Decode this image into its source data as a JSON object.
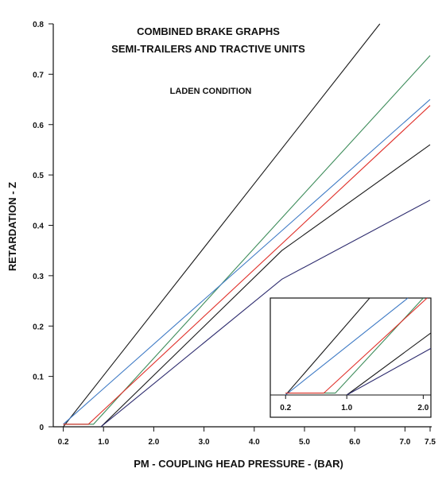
{
  "chart_data": [
    {
      "type": "line",
      "title": "COMBINED BRAKE GRAPHS",
      "subtitle": "SEMI-TRAILERS AND TRACTIVE UNITS",
      "annotation": "LADEN CONDITION",
      "xlabel": "PM - COUPLING HEAD PRESSURE - (BAR)",
      "ylabel": "RETARDATION - Z",
      "xlim": [
        0,
        7.5
      ],
      "ylim": [
        0,
        0.8
      ],
      "x_ticks": [
        {
          "value": 0.2,
          "label": "0.2"
        },
        {
          "value": 1.0,
          "label": "1.0"
        },
        {
          "value": 2.0,
          "label": "2.0"
        },
        {
          "value": 3.0,
          "label": "3.0"
        },
        {
          "value": 4.0,
          "label": "4.0"
        },
        {
          "value": 5.0,
          "label": "5.0"
        },
        {
          "value": 6.0,
          "label": "6.0"
        },
        {
          "value": 7.0,
          "label": "7.0"
        },
        {
          "value": 7.5,
          "label": "7.5"
        }
      ],
      "y_ticks": [
        {
          "value": 0,
          "label": "0"
        },
        {
          "value": 0.1,
          "label": "0.1"
        },
        {
          "value": 0.2,
          "label": "0.2"
        },
        {
          "value": 0.3,
          "label": "0.3"
        },
        {
          "value": 0.4,
          "label": "0.4"
        },
        {
          "value": 0.5,
          "label": "0.5"
        },
        {
          "value": 0.6,
          "label": "0.6"
        },
        {
          "value": 0.7,
          "label": "0.7"
        },
        {
          "value": 0.8,
          "label": "0.8"
        }
      ],
      "grid": false,
      "series": [
        {
          "color": "#1a1a1a",
          "x": [
            0.2,
            6.5
          ],
          "y": [
            0,
            0.8
          ]
        },
        {
          "color": "#3d8c5a",
          "x": [
            0.2,
            0.8,
            7.5
          ],
          "y": [
            0.005,
            0.005,
            0.737
          ]
        },
        {
          "color": "#3b78c4",
          "x": [
            0.2,
            7.5
          ],
          "y": [
            0.005,
            0.65
          ]
        },
        {
          "color": "#e0302a",
          "x": [
            0.2,
            0.7,
            7.5
          ],
          "y": [
            0.005,
            0.005,
            0.638
          ]
        },
        {
          "color": "#1a1a1a",
          "x": [
            0.95,
            4.55,
            7.5
          ],
          "y": [
            0,
            0.35,
            0.56
          ]
        },
        {
          "color": "#2d2b6e",
          "x": [
            0.95,
            4.55,
            7.5
          ],
          "y": [
            0,
            0.293,
            0.45
          ]
        }
      ]
    },
    {
      "type": "line",
      "inset": true,
      "xlim": [
        0,
        2.1
      ],
      "ylim": [
        0,
        0.25
      ],
      "x_ticks": [
        {
          "value": 0.2,
          "label": "0.2"
        },
        {
          "value": 1.0,
          "label": "1.0"
        },
        {
          "value": 2.0,
          "label": "2.0"
        }
      ],
      "series": [
        {
          "color": "#1a1a1a",
          "x": [
            0.2,
            1.3
          ],
          "y": [
            0,
            0.25
          ]
        },
        {
          "color": "#3b78c4",
          "x": [
            0.2,
            1.8
          ],
          "y": [
            0,
            0.25
          ]
        },
        {
          "color": "#3d8c5a",
          "x": [
            0.2,
            0.85,
            2.0
          ],
          "y": [
            0.005,
            0.005,
            0.25
          ]
        },
        {
          "color": "#e0302a",
          "x": [
            0.2,
            0.7,
            2.05
          ],
          "y": [
            0.005,
            0.005,
            0.25
          ]
        },
        {
          "color": "#1a1a1a",
          "x": [
            1.0,
            2.1
          ],
          "y": [
            0,
            0.16
          ]
        },
        {
          "color": "#2d2b6e",
          "x": [
            1.0,
            2.1
          ],
          "y": [
            0,
            0.12
          ]
        }
      ]
    }
  ]
}
